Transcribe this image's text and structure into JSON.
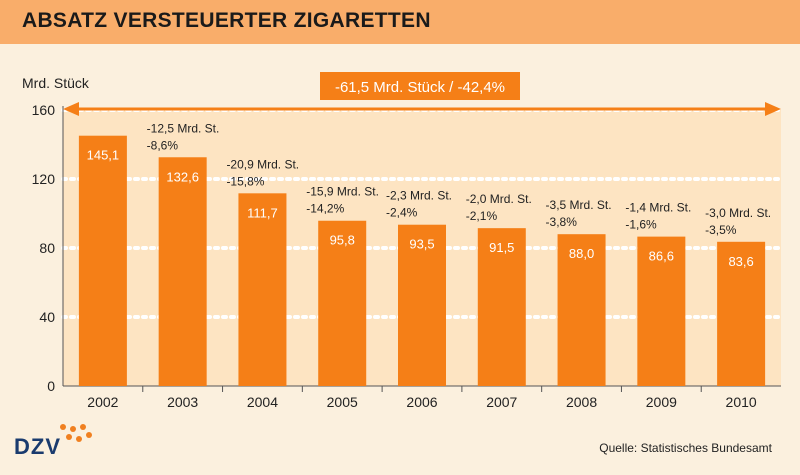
{
  "header": {
    "title": "ABSATZ VERSTEUERTER ZIGARETTEN"
  },
  "footer": {
    "source": "Quelle: Statistisches Bundesamt",
    "logo": "DZV"
  },
  "colors": {
    "bar": "#f57f17",
    "header": "#f9ad6a",
    "plot_bg": "#fde4c2",
    "arrow": "#f57f17"
  },
  "chart_data": {
    "type": "bar",
    "title": "ABSATZ VERSTEUERTER ZIGARETTEN",
    "ylabel": "Mrd. Stück",
    "xlabel": "",
    "ylim": [
      0,
      160
    ],
    "yticks": [
      0,
      40,
      80,
      120,
      160
    ],
    "grid": true,
    "categories": [
      "2002",
      "2003",
      "2004",
      "2005",
      "2006",
      "2007",
      "2008",
      "2009",
      "2010"
    ],
    "values": [
      145.1,
      132.6,
      111.7,
      95.8,
      93.5,
      91.5,
      88.0,
      86.6,
      83.6
    ],
    "value_labels": [
      "145,1",
      "132,6",
      "111,7",
      "95,8",
      "93,5",
      "91,5",
      "88,0",
      "86,6",
      "83,6"
    ],
    "change_labels": [
      null,
      [
        "-12,5 Mrd. St.",
        "-8,6%"
      ],
      [
        "-20,9 Mrd. St.",
        "-15,8%"
      ],
      [
        "-15,9 Mrd. St.",
        "-14,2%"
      ],
      [
        "-2,3 Mrd. St.",
        "-2,4%"
      ],
      [
        "-2,0 Mrd. St.",
        "-2,1%"
      ],
      [
        "-3,5 Mrd. St.",
        "-3,8%"
      ],
      [
        "-1,4 Mrd. St.",
        "-1,6%"
      ],
      [
        "-3,0 Mrd. St.",
        "-3,5%"
      ]
    ],
    "total_change_label": "-61,5 Mrd. Stück / -42,4%"
  }
}
